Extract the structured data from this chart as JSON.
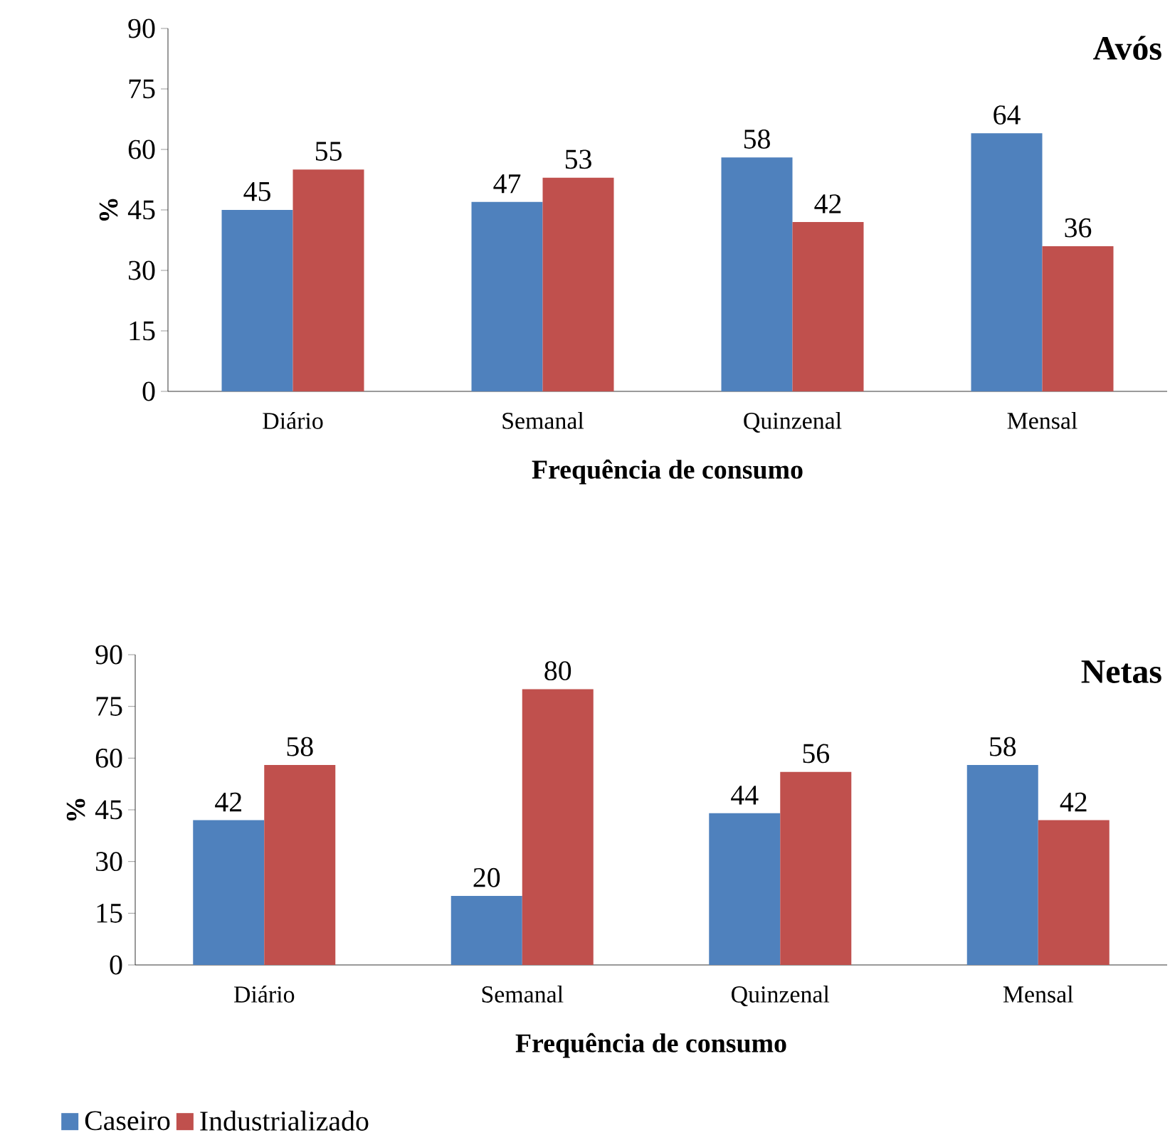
{
  "chart_data": [
    {
      "type": "bar",
      "title": "Avós",
      "xlabel": "Frequência de consumo",
      "ylabel": "%",
      "categories": [
        "Diário",
        "Semanal",
        "Quinzenal",
        "Mensal"
      ],
      "series": [
        {
          "color": "#4f81bd",
          "values": [
            45,
            47,
            58,
            64
          ]
        },
        {
          "color": "#c0504d",
          "values": [
            55,
            53,
            42,
            36
          ]
        }
      ],
      "ylim": [
        0,
        90
      ],
      "yticks": [
        0,
        15,
        30,
        45,
        60,
        75,
        90
      ],
      "data_labels": true,
      "grid": false,
      "legend": false
    },
    {
      "type": "bar",
      "title": "Netas",
      "xlabel": "Frequência de consumo",
      "ylabel": "%",
      "categories": [
        "Diário",
        "Semanal",
        "Quinzenal",
        "Mensal"
      ],
      "series": [
        {
          "name": "Caseiro",
          "color": "#4f81bd",
          "values": [
            42,
            20,
            44,
            58
          ]
        },
        {
          "name": "Industrializado",
          "color": "#c0504d",
          "values": [
            58,
            80,
            56,
            42
          ]
        }
      ],
      "ylim": [
        0,
        90
      ],
      "yticks": [
        0,
        15,
        30,
        45,
        60,
        75,
        90
      ],
      "data_labels": true,
      "grid": false,
      "legend": "bottom"
    }
  ]
}
